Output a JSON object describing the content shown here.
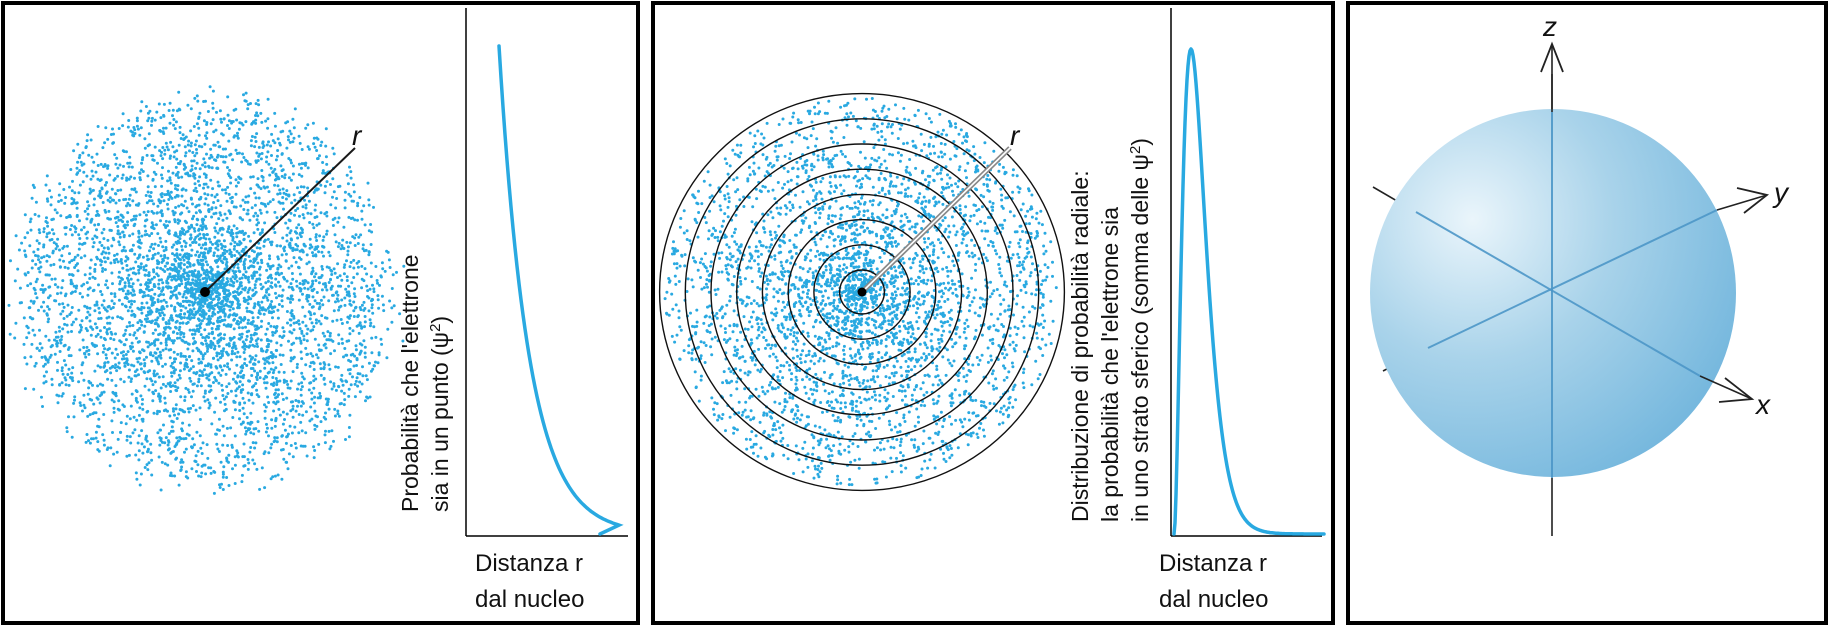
{
  "colors": {
    "dot": "#29a9e1",
    "curve": "#29a9e1",
    "frame": "#000000",
    "sphere_light": "#eaf5fb",
    "sphere_mid": "#a9d3ea",
    "sphere_dark": "#6fb4dc"
  },
  "panel1": {
    "radius_label": "r",
    "ylabel_line1": "Probabilità che l'elettrone",
    "ylabel_line2_prefix": "sia in un punto (",
    "ylabel_line2_symbol": "ψ",
    "ylabel_line2_exp": "2",
    "ylabel_line2_suffix": ")",
    "xlabel_line1": "Distanza r",
    "xlabel_line2": "dal nucleo"
  },
  "panel2": {
    "radius_label": "r",
    "ring_count": 8,
    "ylabel_line1": "Distribuzione di probabilità radiale:",
    "ylabel_line2": "la probabilità che l'elettrone sia",
    "ylabel_line3_prefix": "in uno strato sferico (somma delle ",
    "ylabel_line3_symbol": "ψ",
    "ylabel_line3_exp": "2",
    "ylabel_line3_suffix": ")",
    "xlabel_line1": "Distanza r",
    "xlabel_line2": "dal nucleo"
  },
  "panel3": {
    "axis_z": "z",
    "axis_y": "y",
    "axis_x": "x"
  }
}
